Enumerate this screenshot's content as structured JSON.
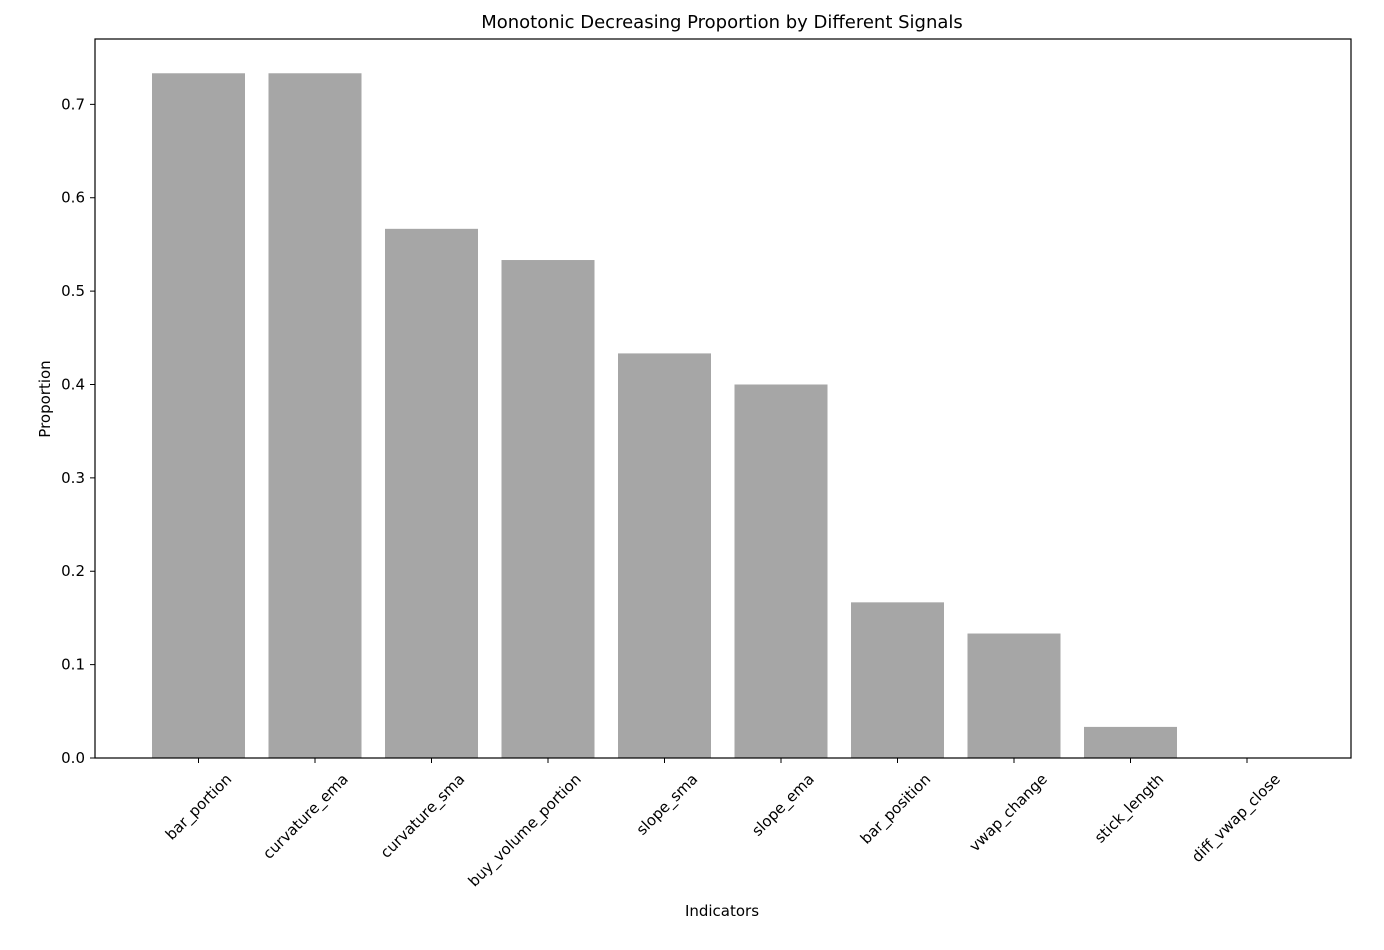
{
  "chart_data": {
    "type": "bar",
    "title": "Monotonic Decreasing Proportion by Different Signals",
    "xlabel": "Indicators",
    "ylabel": "Proportion",
    "categories": [
      "bar_portion",
      "curvature_ema",
      "curvature_sma",
      "buy_volume_portion",
      "slope_sma",
      "slope_ema",
      "bar_position",
      "vwap_change",
      "stick_length",
      "diff_vwap_close"
    ],
    "values": [
      0.7333,
      0.7333,
      0.5667,
      0.5333,
      0.4333,
      0.4,
      0.1667,
      0.1333,
      0.0333,
      0.0
    ],
    "ylim": [
      0,
      0.77
    ],
    "yticks": [
      "0.0",
      "0.1",
      "0.2",
      "0.3",
      "0.4",
      "0.5",
      "0.6",
      "0.7"
    ],
    "grid": false,
    "bar_color": "#a6a6a6"
  }
}
